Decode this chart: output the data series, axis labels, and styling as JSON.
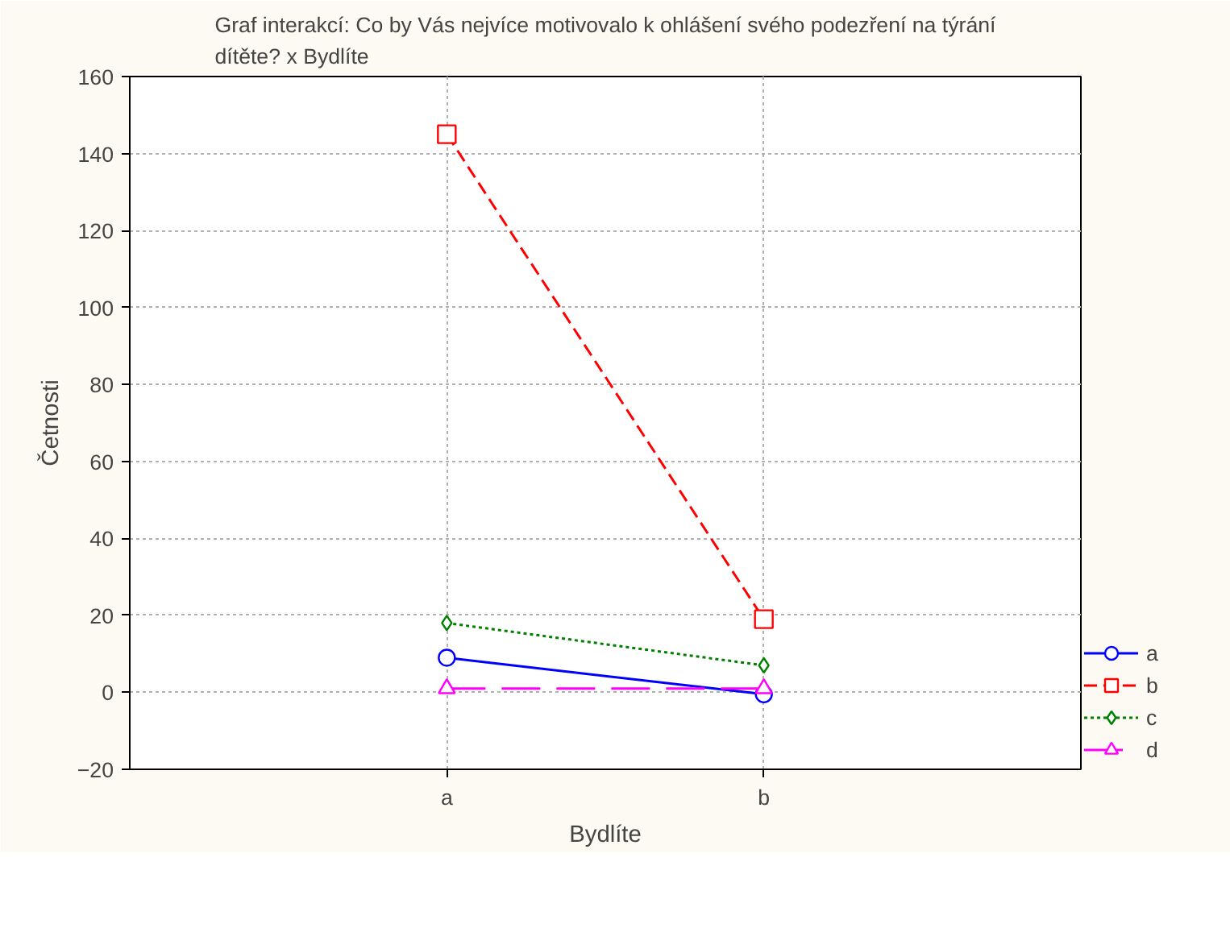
{
  "chart_data": {
    "type": "line",
    "title": "Graf interakcí: Co by Vás nejvíce motivovalo k ohlášení svého podezření na týrání dítěte? x Bydlíte",
    "xlabel": "Bydlíte",
    "ylabel": "Četnosti",
    "categories": [
      "a",
      "b"
    ],
    "series": [
      {
        "name": "a",
        "color": "#0000ff",
        "values": [
          9,
          -0.5
        ],
        "marker": "circle",
        "line_style": "solid"
      },
      {
        "name": "b",
        "color": "#ff0000",
        "values": [
          145,
          19
        ],
        "marker": "square",
        "line_style": "dashed"
      },
      {
        "name": "c",
        "color": "#008000",
        "values": [
          18,
          7
        ],
        "marker": "diamond",
        "line_style": "dotted"
      },
      {
        "name": "d",
        "color": "#ff00ff",
        "values": [
          1,
          1
        ],
        "marker": "triangle",
        "line_style": "dashed"
      }
    ],
    "ylim": [
      -20,
      160
    ],
    "yticks": [
      -20,
      0,
      20,
      40,
      60,
      80,
      100,
      120,
      140,
      160
    ],
    "grid": true,
    "legend": "bottom right"
  }
}
